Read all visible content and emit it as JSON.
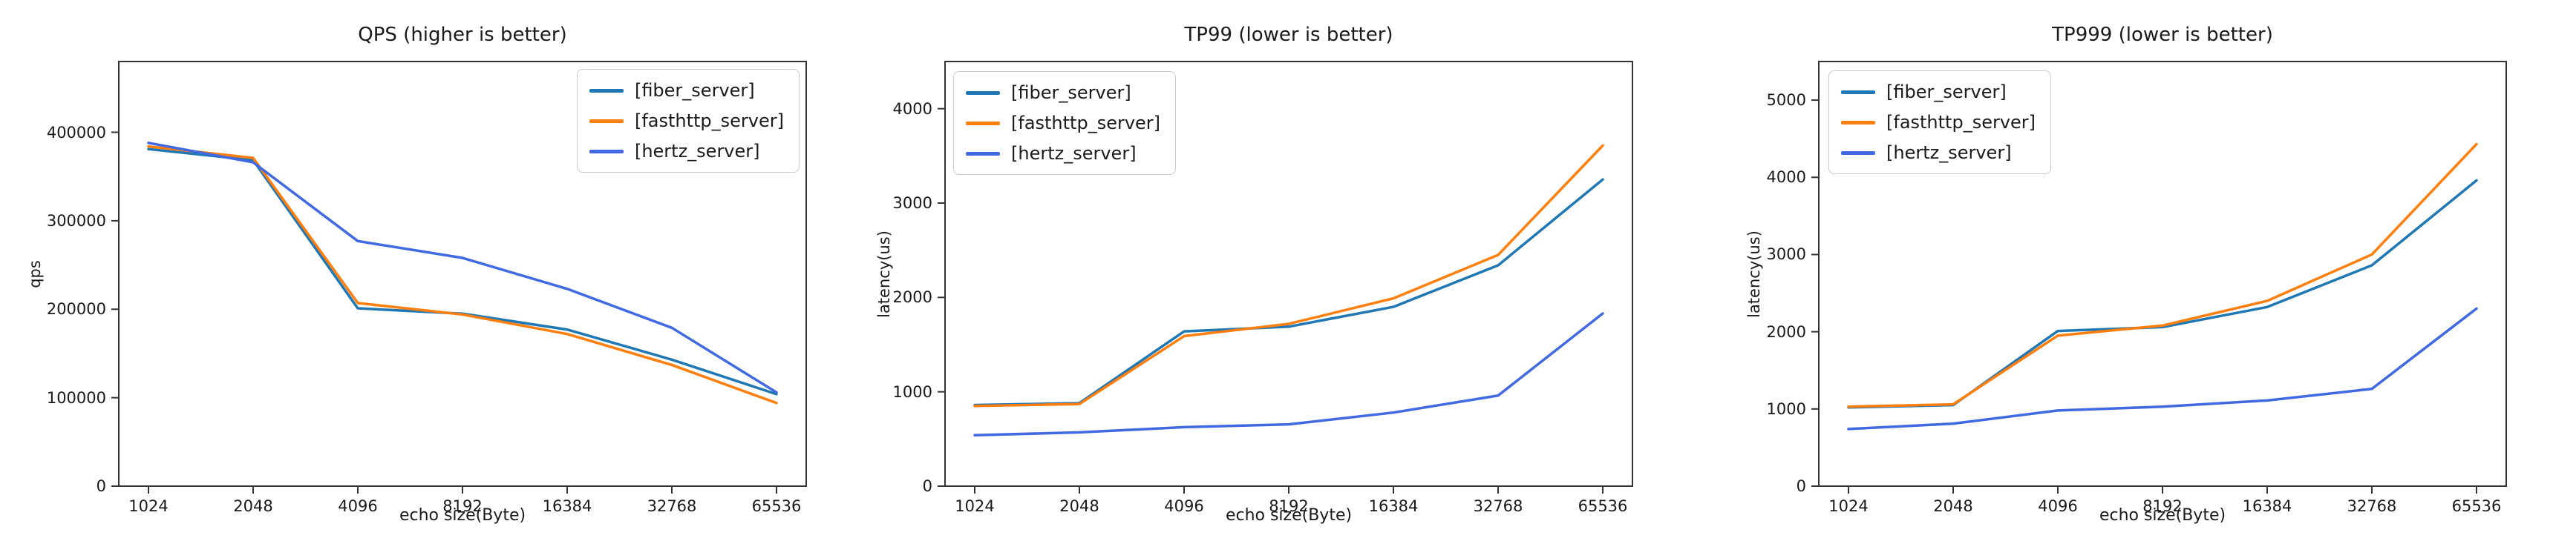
{
  "figure": {
    "background": "#ffffff",
    "text_color": "#1a1a1a",
    "axis_color": "#333333"
  },
  "chart_data": [
    {
      "type": "line",
      "title": "QPS (higher is better)",
      "xlabel": "echo size(Byte)",
      "ylabel": "qps",
      "grid": false,
      "legend_position": "top-right",
      "x_categories": [
        "1024",
        "2048",
        "4096",
        "8192",
        "16384",
        "32768",
        "65536"
      ],
      "y_ticks": [
        0,
        100000,
        200000,
        300000,
        400000
      ],
      "ylim": [
        0,
        480000
      ],
      "series": [
        {
          "name": "[fiber_server]",
          "color": "#1f77b4",
          "values": [
            381000,
            368500,
            201000,
            195000,
            177000,
            143000,
            104000
          ]
        },
        {
          "name": "[fasthttp_server]",
          "color": "#ff7f0e",
          "values": [
            384000,
            371000,
            207000,
            194000,
            172000,
            137000,
            94000
          ]
        },
        {
          "name": "[hertz_server]",
          "color": "#4169e1",
          "values": [
            388000,
            366000,
            277000,
            258000,
            223000,
            179000,
            106000
          ]
        }
      ]
    },
    {
      "type": "line",
      "title": "TP99 (lower is better)",
      "xlabel": "echo size(Byte)",
      "ylabel": "latency(us)",
      "grid": false,
      "legend_position": "top-left",
      "x_categories": [
        "1024",
        "2048",
        "4096",
        "8192",
        "16384",
        "32768",
        "65536"
      ],
      "y_ticks": [
        0,
        1000,
        2000,
        3000,
        4000
      ],
      "ylim": [
        0,
        4500
      ],
      "series": [
        {
          "name": "[fiber_server]",
          "color": "#1f77b4",
          "values": [
            860,
            880,
            1640,
            1690,
            1900,
            2340,
            3250
          ]
        },
        {
          "name": "[fasthttp_server]",
          "color": "#ff7f0e",
          "values": [
            850,
            870,
            1590,
            1720,
            1990,
            2450,
            3610
          ]
        },
        {
          "name": "[hertz_server]",
          "color": "#4169e1",
          "values": [
            540,
            570,
            625,
            655,
            780,
            960,
            1830
          ]
        }
      ]
    },
    {
      "type": "line",
      "title": "TP999 (lower is better)",
      "xlabel": "echo size(Byte)",
      "ylabel": "latency(us)",
      "grid": false,
      "legend_position": "top-left",
      "x_categories": [
        "1024",
        "2048",
        "4096",
        "8192",
        "16384",
        "32768",
        "65536"
      ],
      "y_ticks": [
        0,
        1000,
        2000,
        3000,
        4000,
        5000
      ],
      "ylim": [
        0,
        5500
      ],
      "series": [
        {
          "name": "[fiber_server]",
          "color": "#1f77b4",
          "values": [
            1020,
            1050,
            2010,
            2060,
            2320,
            2860,
            3960
          ]
        },
        {
          "name": "[fasthttp_server]",
          "color": "#ff7f0e",
          "values": [
            1030,
            1060,
            1950,
            2080,
            2400,
            3000,
            4430
          ]
        },
        {
          "name": "[hertz_server]",
          "color": "#4169e1",
          "values": [
            740,
            810,
            980,
            1030,
            1110,
            1260,
            2300
          ]
        }
      ]
    }
  ]
}
